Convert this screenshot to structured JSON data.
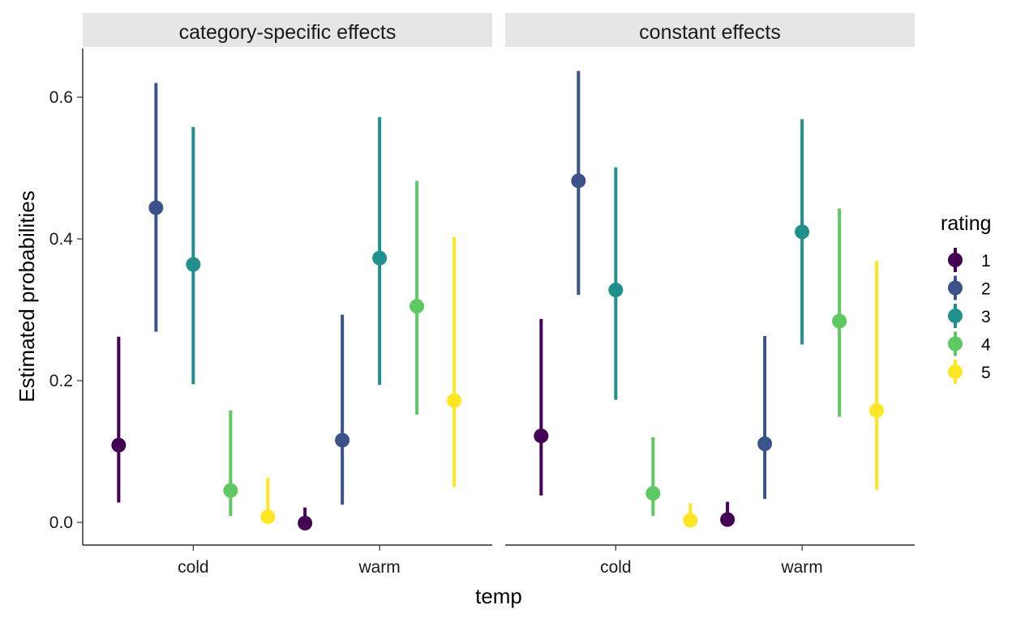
{
  "chart_data": {
    "type": "scatter",
    "subtype": "pointrange",
    "xlabel": "temp",
    "ylabel": "Estimated probabilities",
    "categories": [
      "cold",
      "warm"
    ],
    "ylim": [
      -0.03,
      0.665
    ],
    "yticks": [
      0.0,
      0.2,
      0.4,
      0.6
    ],
    "ytick_labels": [
      "0.0",
      "0.2",
      "0.4",
      "0.6"
    ],
    "grid": false,
    "legend": {
      "title": "rating",
      "position": "right",
      "entries": [
        "1",
        "2",
        "3",
        "4",
        "5"
      ]
    },
    "colors": [
      "#440154",
      "#3b528b",
      "#21908c",
      "#5ec962",
      "#fde725"
    ],
    "panels": [
      {
        "title": "category-specific effects",
        "series": [
          {
            "name": "1",
            "points": [
              {
                "x": "cold",
                "y": 0.109,
                "ymin": 0.028,
                "ymax": 0.262
              },
              {
                "x": "warm",
                "y": -0.001,
                "ymin": -0.001,
                "ymax": 0.021
              }
            ]
          },
          {
            "name": "2",
            "points": [
              {
                "x": "cold",
                "y": 0.444,
                "ymin": 0.269,
                "ymax": 0.62
              },
              {
                "x": "warm",
                "y": 0.116,
                "ymin": 0.025,
                "ymax": 0.293
              }
            ]
          },
          {
            "name": "3",
            "points": [
              {
                "x": "cold",
                "y": 0.364,
                "ymin": 0.195,
                "ymax": 0.558
              },
              {
                "x": "warm",
                "y": 0.373,
                "ymin": 0.194,
                "ymax": 0.572
              }
            ]
          },
          {
            "name": "4",
            "points": [
              {
                "x": "cold",
                "y": 0.045,
                "ymin": 0.009,
                "ymax": 0.158
              },
              {
                "x": "warm",
                "y": 0.305,
                "ymin": 0.152,
                "ymax": 0.482
              }
            ]
          },
          {
            "name": "5",
            "points": [
              {
                "x": "cold",
                "y": 0.008,
                "ymin": 0.001,
                "ymax": 0.063
              },
              {
                "x": "warm",
                "y": 0.172,
                "ymin": 0.05,
                "ymax": 0.403
              }
            ]
          }
        ]
      },
      {
        "title": "constant effects",
        "series": [
          {
            "name": "1",
            "points": [
              {
                "x": "cold",
                "y": 0.122,
                "ymin": 0.038,
                "ymax": 0.287
              },
              {
                "x": "warm",
                "y": 0.004,
                "ymin": 0.001,
                "ymax": 0.029
              }
            ]
          },
          {
            "name": "2",
            "points": [
              {
                "x": "cold",
                "y": 0.482,
                "ymin": 0.321,
                "ymax": 0.637
              },
              {
                "x": "warm",
                "y": 0.111,
                "ymin": 0.033,
                "ymax": 0.263
              }
            ]
          },
          {
            "name": "3",
            "points": [
              {
                "x": "cold",
                "y": 0.328,
                "ymin": 0.173,
                "ymax": 0.501
              },
              {
                "x": "warm",
                "y": 0.41,
                "ymin": 0.251,
                "ymax": 0.569
              }
            ]
          },
          {
            "name": "4",
            "points": [
              {
                "x": "cold",
                "y": 0.041,
                "ymin": 0.009,
                "ymax": 0.12
              },
              {
                "x": "warm",
                "y": 0.284,
                "ymin": 0.149,
                "ymax": 0.443
              }
            ]
          },
          {
            "name": "5",
            "points": [
              {
                "x": "cold",
                "y": 0.003,
                "ymin": 0.0,
                "ymax": 0.027
              },
              {
                "x": "warm",
                "y": 0.158,
                "ymin": 0.046,
                "ymax": 0.369
              }
            ]
          }
        ]
      }
    ]
  }
}
